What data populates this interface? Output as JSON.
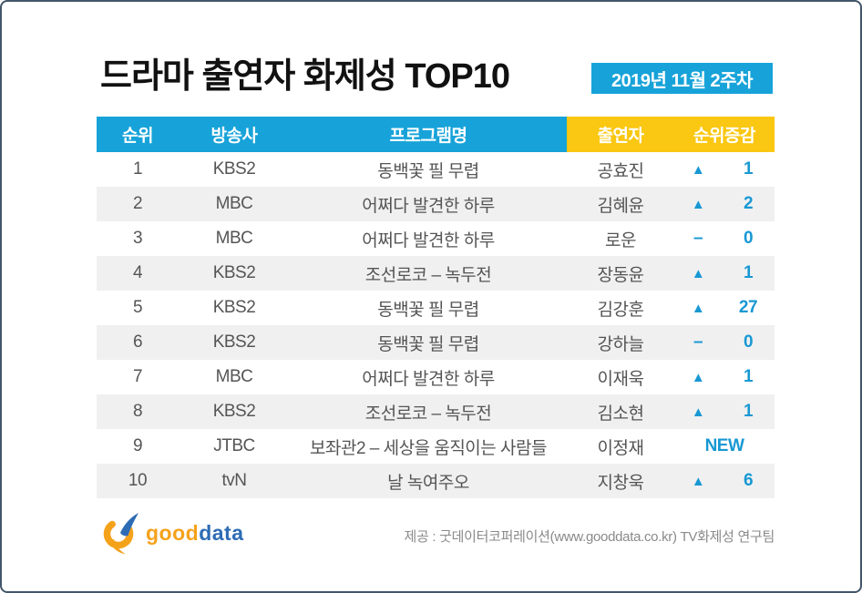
{
  "colors": {
    "accent_cyan": "#17A3D9",
    "accent_yellow": "#FAC712",
    "change_blue": "#1898D3",
    "row_stripe_gray": "#F0F0F1",
    "logo_orange": "#F5A21B",
    "logo_blue": "#2D6CB5",
    "frame_border": "#42566A"
  },
  "header": {
    "title": "드라마 출연자 화제성 TOP10",
    "period_badge": "2019년 11월 2주차"
  },
  "table": {
    "headers": {
      "rank": "순위",
      "broadcaster": "방송사",
      "program": "프로그램명",
      "cast": "출연자",
      "change": "순위증감"
    },
    "rows": [
      {
        "rank": "1",
        "broadcaster": "KBS2",
        "program": "동백꽃 필 무렵",
        "cast": "공효진",
        "change_symbol": "▲",
        "change_value": "1",
        "is_new": false
      },
      {
        "rank": "2",
        "broadcaster": "MBC",
        "program": "어쩌다 발견한 하루",
        "cast": "김혜윤",
        "change_symbol": "▲",
        "change_value": "2",
        "is_new": false
      },
      {
        "rank": "3",
        "broadcaster": "MBC",
        "program": "어쩌다 발견한 하루",
        "cast": "로운",
        "change_symbol": "–",
        "change_value": "0",
        "is_new": false
      },
      {
        "rank": "4",
        "broadcaster": "KBS2",
        "program": "조선로코 – 녹두전",
        "cast": "장동윤",
        "change_symbol": "▲",
        "change_value": "1",
        "is_new": false
      },
      {
        "rank": "5",
        "broadcaster": "KBS2",
        "program": "동백꽃 필 무렵",
        "cast": "김강훈",
        "change_symbol": "▲",
        "change_value": "27",
        "is_new": false
      },
      {
        "rank": "6",
        "broadcaster": "KBS2",
        "program": "동백꽃 필 무렵",
        "cast": "강하늘",
        "change_symbol": "–",
        "change_value": "0",
        "is_new": false
      },
      {
        "rank": "7",
        "broadcaster": "MBC",
        "program": "어쩌다 발견한 하루",
        "cast": "이재욱",
        "change_symbol": "▲",
        "change_value": "1",
        "is_new": false
      },
      {
        "rank": "8",
        "broadcaster": "KBS2",
        "program": "조선로코 – 녹두전",
        "cast": "김소현",
        "change_symbol": "▲",
        "change_value": "1",
        "is_new": false
      },
      {
        "rank": "9",
        "broadcaster": "JTBC",
        "program": "보좌관2 – 세상을 움직이는 사람들",
        "cast": "이정재",
        "change_symbol": "",
        "change_value": "NEW",
        "is_new": true
      },
      {
        "rank": "10",
        "broadcaster": "tvN",
        "program": "날 녹여주오",
        "cast": "지창욱",
        "change_symbol": "▲",
        "change_value": "6",
        "is_new": false
      }
    ]
  },
  "footer": {
    "logo_good": "good",
    "logo_data": "data",
    "credit": "제공 : 굿데이터코퍼레이션(www.gooddata.co.kr) TV화제성 연구팀"
  },
  "chart_data": {
    "type": "table",
    "title": "드라마 출연자 화제성 TOP10",
    "subtitle": "2019년 11월 2주차",
    "columns": [
      "순위",
      "방송사",
      "프로그램명",
      "출연자",
      "순위증감"
    ],
    "rows": [
      [
        1,
        "KBS2",
        "동백꽃 필 무렵",
        "공효진",
        "▲ 1"
      ],
      [
        2,
        "MBC",
        "어쩌다 발견한 하루",
        "김혜윤",
        "▲ 2"
      ],
      [
        3,
        "MBC",
        "어쩌다 발견한 하루",
        "로운",
        "– 0"
      ],
      [
        4,
        "KBS2",
        "조선로코 – 녹두전",
        "장동윤",
        "▲ 1"
      ],
      [
        5,
        "KBS2",
        "동백꽃 필 무렵",
        "김강훈",
        "▲ 27"
      ],
      [
        6,
        "KBS2",
        "동백꽃 필 무렵",
        "강하늘",
        "– 0"
      ],
      [
        7,
        "MBC",
        "어쩌다 발견한 하루",
        "이재욱",
        "▲ 1"
      ],
      [
        8,
        "KBS2",
        "조선로코 – 녹두전",
        "김소현",
        "▲ 1"
      ],
      [
        9,
        "JTBC",
        "보좌관2 – 세상을 움직이는 사람들",
        "이정재",
        "NEW"
      ],
      [
        10,
        "tvN",
        "날 녹여주오",
        "지창욱",
        "▲ 6"
      ]
    ]
  }
}
